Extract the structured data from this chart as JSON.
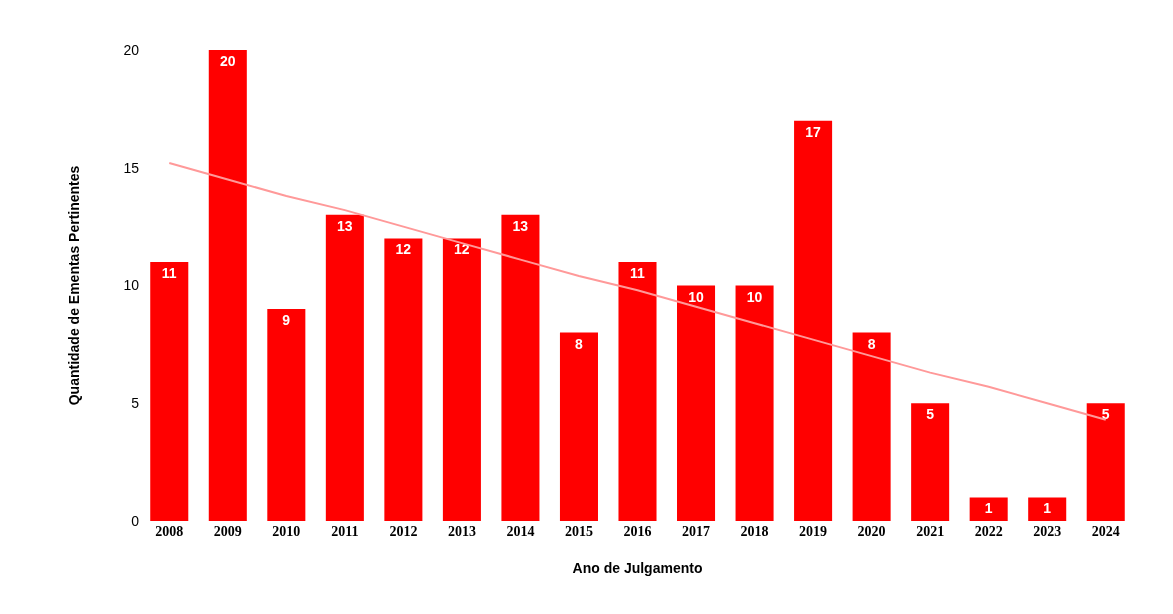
{
  "chart_data": {
    "type": "bar",
    "xlabel": "Ano de Julgamento",
    "ylabel": "Quantidade de Ementas Pertinentes",
    "categories": [
      "2008",
      "2009",
      "2010",
      "2011",
      "2012",
      "2013",
      "2014",
      "2015",
      "2016",
      "2017",
      "2018",
      "2019",
      "2020",
      "2021",
      "2022",
      "2023",
      "2024"
    ],
    "series": [
      {
        "color": "#ff0000",
        "values": [
          11,
          20,
          9,
          13,
          12,
          12,
          13,
          8,
          11,
          10,
          10,
          17,
          8,
          5,
          1,
          1,
          5
        ],
        "value_labels": [
          "11",
          "20",
          "9",
          "13",
          "12",
          "12",
          "13",
          "8",
          "11",
          "10",
          "10",
          "17",
          "8",
          "5",
          "1",
          "1",
          "5"
        ]
      },
      {
        "type": "line",
        "color": "#ff9999",
        "values": [
          15.2,
          14.5,
          13.8,
          13.2,
          12.5,
          11.8,
          11.1,
          10.4,
          9.8,
          9.1,
          8.4,
          7.7,
          7.0,
          6.3,
          5.7,
          5.0,
          4.3
        ]
      }
    ],
    "ylim": [
      0,
      20
    ],
    "yticks": [
      0,
      5,
      10,
      15,
      20
    ],
    "grid": false,
    "legend": false
  }
}
